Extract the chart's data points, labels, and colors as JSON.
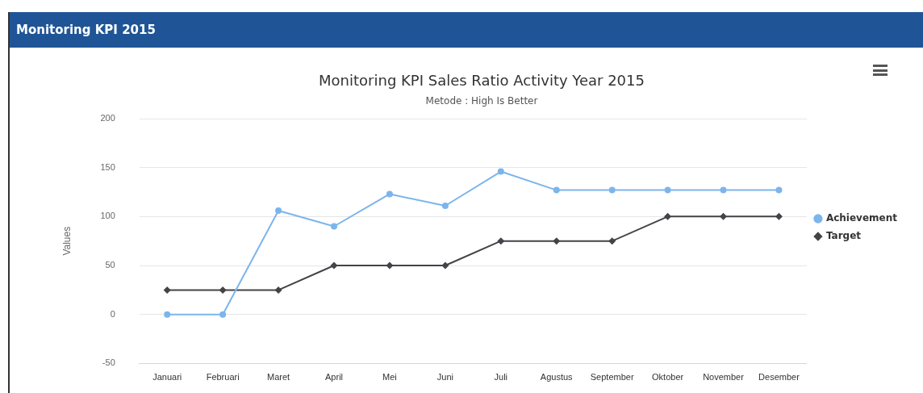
{
  "chart_data": {
    "type": "line",
    "title": "Monitoring KPI Sales Ratio Activity Year 2015",
    "subtitle": "Metode : High Is Better",
    "ylabel": "Values",
    "annotations": [
      "Monitoring KPI 2015"
    ],
    "categories": [
      "Januari",
      "Februari",
      "Maret",
      "April",
      "Mei",
      "Juni",
      "Juli",
      "Agustus",
      "September",
      "Oktober",
      "November",
      "Desember"
    ],
    "series": [
      {
        "name": "Achievement",
        "color": "#7cb5ec",
        "marker": "circle",
        "values": [
          0,
          0,
          106,
          90,
          123,
          111,
          146,
          127,
          127,
          127,
          127,
          127
        ]
      },
      {
        "name": "Target",
        "color": "#434348",
        "marker": "diamond",
        "values": [
          25,
          25,
          25,
          50,
          50,
          50,
          75,
          75,
          75,
          100,
          100,
          100
        ]
      }
    ],
    "ylim": [
      -50,
      200
    ],
    "yticks": [
      -50,
      0,
      50,
      100,
      150,
      200
    ],
    "grid": "y",
    "legend": "right",
    "line_style": "solid"
  }
}
